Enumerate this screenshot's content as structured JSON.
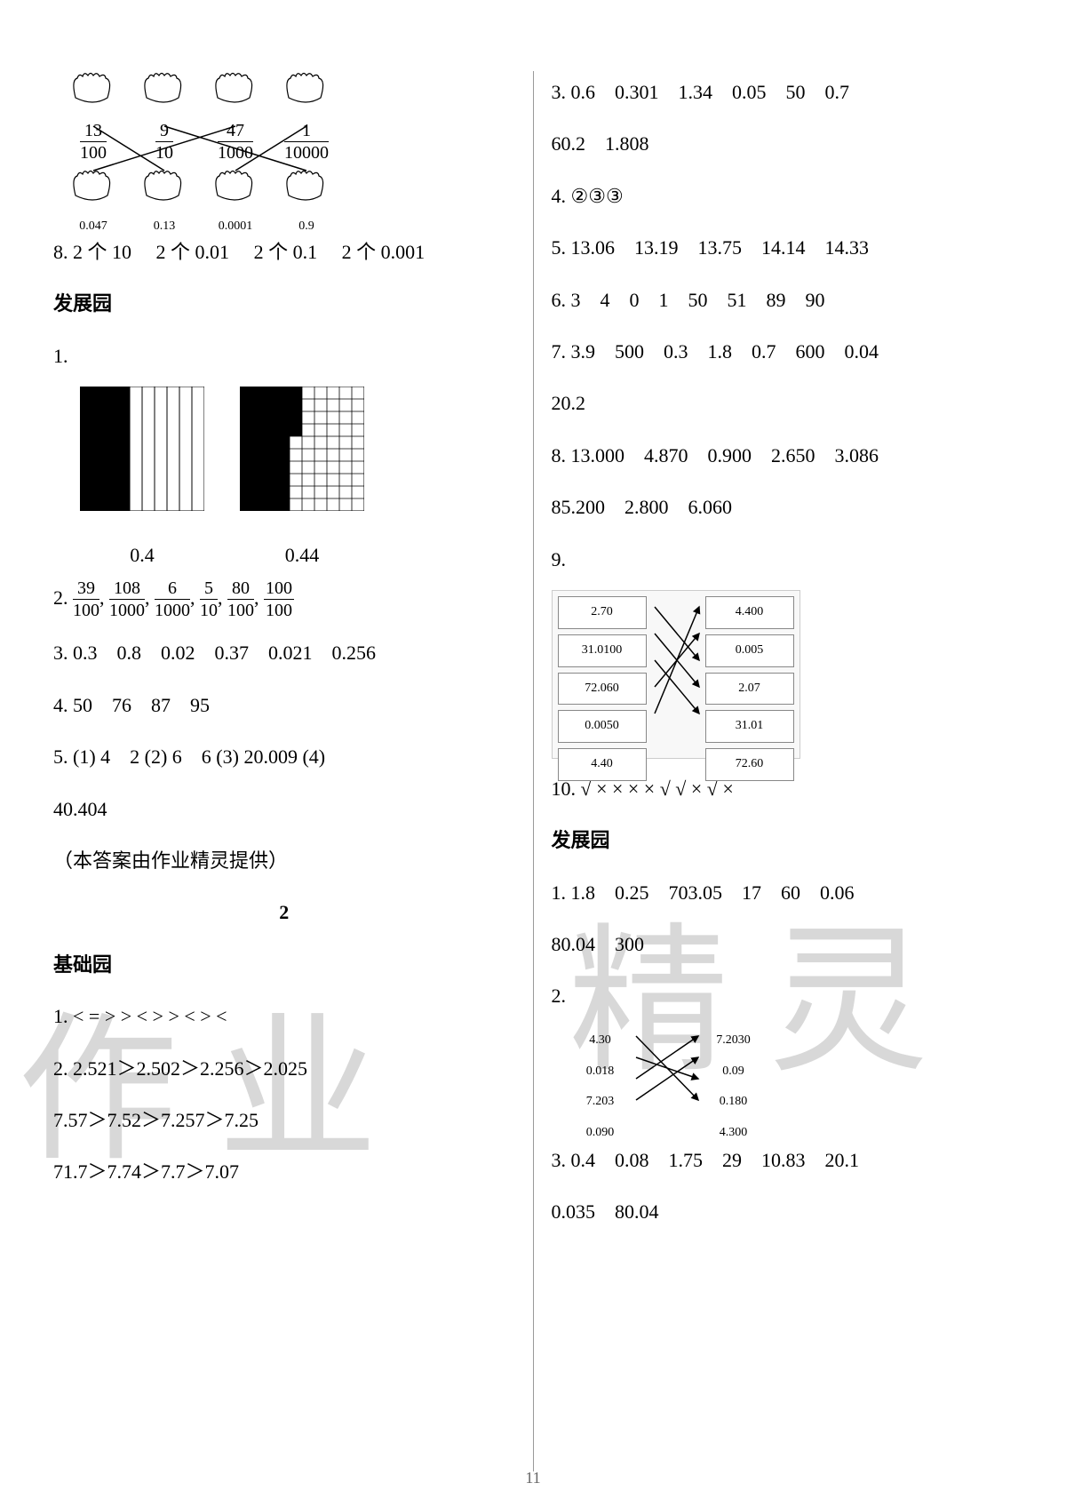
{
  "pageNumber": "11",
  "watermark": {
    "left": "作 业",
    "right": "精 灵"
  },
  "left": {
    "hands": {
      "top": [
        {
          "num": "13",
          "den": "100"
        },
        {
          "num": "9",
          "den": "10"
        },
        {
          "num": "47",
          "den": "1000"
        },
        {
          "num": "1",
          "den": "10000"
        }
      ],
      "bottom": [
        "0.047",
        "0.13",
        "0.0001",
        "0.9"
      ]
    },
    "line8": {
      "prefix": "8. ",
      "parts": [
        "2 个 10",
        "2 个 0.01",
        "2 个 0.1",
        "2 个 0.001"
      ]
    },
    "sec1_title": "发展园",
    "sec1": {
      "q1": "1.",
      "sq_labels": [
        "0.4",
        "0.44"
      ],
      "sq_a": {
        "cols": 10,
        "filled_cols": 4,
        "fill": "#000000",
        "bg": "#ffffff",
        "stroke": "#000000",
        "size": 140
      },
      "sq_b": {
        "rows": 10,
        "cols": 10,
        "filled_cells": 44,
        "fill": "#000000",
        "bg": "#ffffff",
        "stroke": "#000000",
        "size": 140
      },
      "q2_prefix": "2. ",
      "q2_fracs": [
        {
          "num": "39",
          "den": "100"
        },
        {
          "num": "108",
          "den": "1000"
        },
        {
          "num": "6",
          "den": "1000"
        },
        {
          "num": "5",
          "den": "10"
        },
        {
          "num": "80",
          "den": "100"
        },
        {
          "num": "100",
          "den": "100"
        }
      ],
      "q3": "3. 0.3　0.8　0.02　0.37　0.021　0.256",
      "q4": "4. 50　76　87　95",
      "q5a": "5.  (1) 4　2  (2) 6　6  (3) 20.009  (4)",
      "q5b": "40.404",
      "credit": "（本答案由作业精灵提供）"
    },
    "chapter2": "2",
    "sec2_title": "基础园",
    "sec2": {
      "q1": "1.  < = > > < > > < > <",
      "q2a": "2.  2.521＞2.502＞2.256＞2.025",
      "q2b": "7.57＞7.52＞7.257＞7.25",
      "q2c": "71.7＞7.74＞7.7＞7.07"
    }
  },
  "right": {
    "q3a": "3. 0.6　0.301　1.34　0.05　50　0.7",
    "q3b": "60.2　1.808",
    "q4": "4. ②③③",
    "q5": "5. 13.06　13.19　13.75　14.14　14.33",
    "q6": "6. 3　4　0　1　50　51　89　90",
    "q7a": "7. 3.9　500　0.3　1.8　0.7　600　0.04",
    "q7b": "20.2",
    "q8a": "8. 13.000　4.870　0.900　2.650　3.086",
    "q8b": "85.200　2.800　6.060",
    "q9_label": "9.",
    "match9": {
      "left": [
        "2.70",
        "31.0100",
        "72.060",
        "0.0050",
        "4.40"
      ],
      "right": [
        "4.400",
        "0.005",
        "2.07",
        "31.01",
        "72.60"
      ],
      "edges": [
        [
          0,
          2
        ],
        [
          1,
          3
        ],
        [
          2,
          4
        ],
        [
          3,
          1
        ],
        [
          4,
          0
        ]
      ],
      "stroke": "#000000"
    },
    "q10": "10.  √ × × × × √ √ × √ ×",
    "sec_title": "发展园",
    "d1a": "1. 1.8　0.25　703.05　17　60　0.06",
    "d1b": "80.04　300",
    "d2_label": "2.",
    "match2": {
      "left": [
        "4.30",
        "0.018",
        "7.203",
        "0.090"
      ],
      "right": [
        "7.2030",
        "0.09",
        "0.180",
        "4.300"
      ],
      "edges": [
        [
          0,
          3
        ],
        [
          1,
          2
        ],
        [
          2,
          0
        ],
        [
          3,
          1
        ]
      ],
      "stroke": "#000000"
    },
    "d3a": "3. 0.4　0.08　1.75　29　10.83　20.1",
    "d3b": "0.035　80.04"
  }
}
